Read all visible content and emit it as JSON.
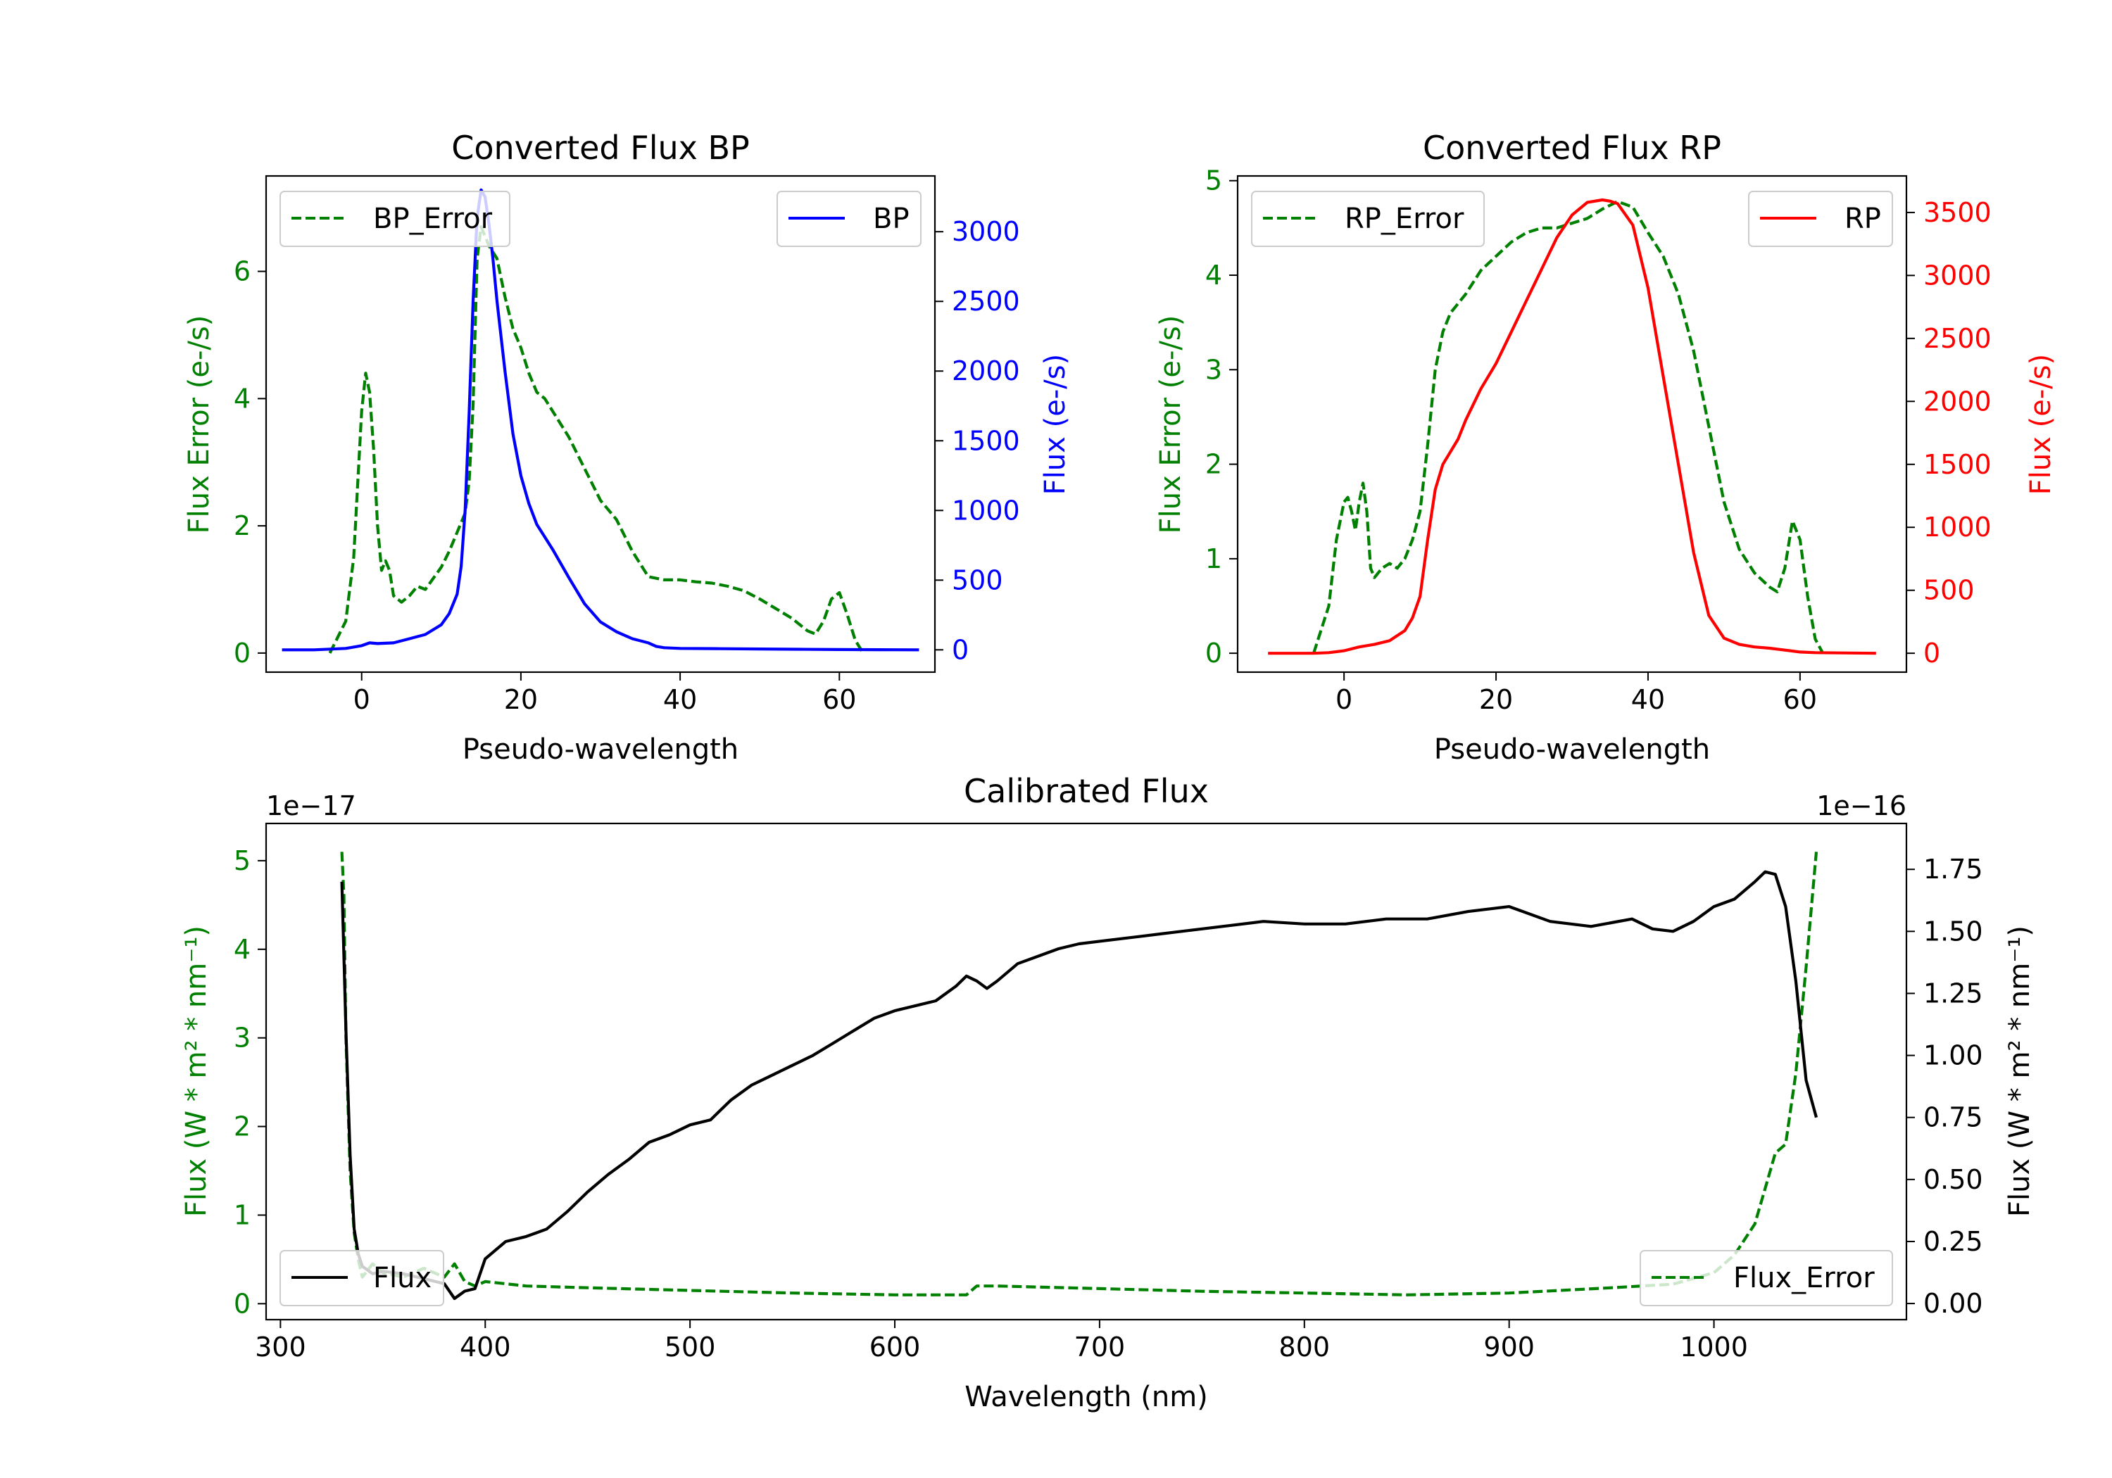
{
  "chart_data": [
    {
      "id": "bp",
      "type": "line",
      "title": "Converted Flux BP",
      "xlabel": "Pseudo-wavelength",
      "ylabel_left": "Flux Error (e-/s)",
      "ylabel_right": "Flux (e-/s)",
      "xlim": [
        -12,
        72
      ],
      "ylim_left": [
        -0.3,
        7.5
      ],
      "ylim_right": [
        -160,
        3400
      ],
      "xticks": [
        0,
        20,
        40,
        60
      ],
      "yticks_left": [
        0,
        2,
        4,
        6
      ],
      "yticks_right": [
        0,
        500,
        1000,
        1500,
        2000,
        2500,
        3000
      ],
      "legend_left": "top-left",
      "legend_right": "top-right",
      "series": [
        {
          "name": "BP_Error",
          "axis": "left",
          "color": "#008000",
          "style": "dashed",
          "x": [
            -4,
            -2,
            -1,
            0,
            0.5,
            1,
            1.5,
            2,
            2.5,
            3,
            3.5,
            4,
            5,
            6,
            7,
            8,
            10,
            11,
            12,
            13,
            13.5,
            14,
            14.5,
            15,
            16,
            17,
            18,
            19,
            20,
            21,
            22,
            23,
            24,
            26,
            28,
            30,
            32,
            34,
            36,
            38,
            40,
            42,
            44,
            46,
            48,
            50,
            52,
            54,
            56,
            57,
            58,
            59,
            60,
            61,
            62,
            63
          ],
          "values": [
            0,
            0.5,
            1.5,
            3.8,
            4.4,
            4.1,
            3.2,
            2.0,
            1.3,
            1.45,
            1.3,
            0.9,
            0.8,
            0.9,
            1.05,
            1.0,
            1.35,
            1.6,
            1.9,
            2.2,
            2.7,
            3.9,
            6.2,
            6.7,
            6.4,
            6.2,
            5.6,
            5.1,
            4.8,
            4.4,
            4.1,
            4.0,
            3.8,
            3.4,
            2.9,
            2.4,
            2.1,
            1.6,
            1.2,
            1.15,
            1.15,
            1.12,
            1.1,
            1.05,
            0.98,
            0.85,
            0.7,
            0.55,
            0.35,
            0.3,
            0.5,
            0.85,
            0.95,
            0.6,
            0.2,
            0
          ]
        },
        {
          "name": "BP",
          "axis": "right",
          "color": "#0000ff",
          "style": "solid",
          "x": [
            -10,
            -6,
            -4,
            -2,
            0,
            1,
            2,
            4,
            6,
            8,
            10,
            11,
            12,
            12.5,
            13,
            13.5,
            14,
            14.5,
            15,
            15.5,
            16,
            16.5,
            17,
            18,
            19,
            20,
            21,
            22,
            24,
            26,
            28,
            30,
            32,
            34,
            36,
            37,
            38,
            40,
            45,
            50,
            55,
            60,
            65,
            70
          ],
          "values": [
            0,
            0,
            5,
            10,
            30,
            50,
            45,
            50,
            80,
            110,
            180,
            260,
            400,
            600,
            1000,
            1700,
            2500,
            3100,
            3300,
            3250,
            3050,
            2800,
            2500,
            2000,
            1550,
            1250,
            1050,
            900,
            720,
            520,
            330,
            200,
            130,
            80,
            50,
            25,
            15,
            10,
            8,
            6,
            4,
            2,
            1,
            0
          ]
        }
      ]
    },
    {
      "id": "rp",
      "type": "line",
      "title": "Converted Flux RP",
      "xlabel": "Pseudo-wavelength",
      "ylabel_left": "Flux Error (e-/s)",
      "ylabel_right": "Flux (e-/s)",
      "xlim": [
        -14,
        74
      ],
      "ylim_left": [
        -0.2,
        5.05
      ],
      "ylim_right": [
        -150,
        3790
      ],
      "xticks": [
        0,
        20,
        40,
        60
      ],
      "yticks_left": [
        0,
        1,
        2,
        3,
        4,
        5
      ],
      "yticks_right": [
        0,
        500,
        1000,
        1500,
        2000,
        2500,
        3000,
        3500
      ],
      "legend_left": "top-left",
      "legend_right": "top-right",
      "series": [
        {
          "name": "RP_Error",
          "axis": "left",
          "color": "#008000",
          "style": "dashed",
          "x": [
            -4,
            -2,
            -1,
            0,
            0.5,
            1,
            1.5,
            2,
            2.5,
            3,
            3.5,
            4,
            5,
            6,
            7,
            8,
            9,
            10,
            11,
            12,
            13,
            14,
            16,
            18,
            20,
            22,
            24,
            26,
            28,
            30,
            32,
            34,
            36,
            38,
            40,
            42,
            44,
            46,
            48,
            50,
            52,
            54,
            56,
            57,
            58,
            59,
            60,
            61,
            62,
            63
          ],
          "values": [
            0,
            0.5,
            1.2,
            1.6,
            1.65,
            1.5,
            1.3,
            1.6,
            1.8,
            1.5,
            0.9,
            0.8,
            0.9,
            0.95,
            0.9,
            1.0,
            1.2,
            1.5,
            2.2,
            3.0,
            3.4,
            3.6,
            3.8,
            4.05,
            4.2,
            4.35,
            4.45,
            4.5,
            4.5,
            4.55,
            4.6,
            4.7,
            4.78,
            4.72,
            4.45,
            4.2,
            3.8,
            3.2,
            2.4,
            1.6,
            1.1,
            0.85,
            0.7,
            0.65,
            0.9,
            1.4,
            1.2,
            0.6,
            0.15,
            0
          ]
        },
        {
          "name": "RP",
          "axis": "right",
          "color": "#ff0000",
          "style": "solid",
          "x": [
            -10,
            -4,
            -2,
            0,
            2,
            4,
            6,
            8,
            9,
            10,
            11,
            12,
            13,
            14,
            15,
            16,
            18,
            20,
            22,
            24,
            26,
            28,
            30,
            32,
            34,
            35,
            36,
            38,
            40,
            42,
            44,
            46,
            48,
            50,
            52,
            54,
            56,
            58,
            60,
            62,
            70
          ],
          "values": [
            0,
            0,
            5,
            20,
            50,
            70,
            100,
            180,
            280,
            450,
            900,
            1300,
            1500,
            1600,
            1700,
            1850,
            2100,
            2300,
            2550,
            2800,
            3050,
            3300,
            3480,
            3580,
            3600,
            3590,
            3570,
            3400,
            2900,
            2200,
            1500,
            800,
            300,
            120,
            70,
            50,
            40,
            25,
            10,
            5,
            0
          ]
        }
      ]
    },
    {
      "id": "calibrated",
      "type": "line",
      "title": "Calibrated Flux",
      "xlabel": "Wavelength (nm)",
      "ylabel_left": "Flux (W * m² * nm⁻¹)",
      "ylabel_right": "Flux (W * m² * nm⁻¹)",
      "offset_left": "1e−17",
      "offset_right": "1e−16",
      "xlim": [
        293,
        1094
      ],
      "ylim_left": [
        -0.18,
        5.42
      ],
      "ylim_right": [
        -0.065,
        1.935
      ],
      "xticks": [
        300,
        400,
        500,
        600,
        700,
        800,
        900,
        1000
      ],
      "yticks_left": [
        0,
        1,
        2,
        3,
        4,
        5
      ],
      "yticks_right": [
        "0.00",
        "0.25",
        "0.50",
        "0.75",
        "1.00",
        "1.25",
        "1.50",
        "1.75"
      ],
      "legend_left": "bottom-left",
      "legend_right": "bottom-right",
      "series": [
        {
          "name": "Flux_Error",
          "axis": "left",
          "color": "#008000",
          "style": "dashed",
          "x": [
            330,
            331,
            332,
            334,
            336,
            338,
            340,
            345,
            350,
            360,
            370,
            380,
            385,
            390,
            395,
            400,
            420,
            450,
            500,
            550,
            600,
            635,
            640,
            650,
            700,
            750,
            800,
            850,
            900,
            950,
            980,
            1000,
            1010,
            1020,
            1025,
            1030,
            1035,
            1040,
            1045,
            1050
          ],
          "values": [
            5.1,
            4.6,
            3.0,
            1.5,
            0.8,
            0.5,
            0.3,
            0.45,
            0.35,
            0.3,
            0.4,
            0.3,
            0.45,
            0.25,
            0.2,
            0.25,
            0.2,
            0.18,
            0.15,
            0.12,
            0.1,
            0.1,
            0.2,
            0.2,
            0.17,
            0.14,
            0.12,
            0.1,
            0.12,
            0.18,
            0.22,
            0.35,
            0.55,
            0.9,
            1.3,
            1.7,
            1.8,
            2.6,
            3.8,
            5.1
          ]
        },
        {
          "name": "Flux",
          "axis": "right",
          "color": "#000000",
          "style": "solid",
          "x": [
            330,
            332,
            334,
            336,
            338,
            340,
            345,
            350,
            360,
            370,
            380,
            385,
            390,
            395,
            400,
            410,
            420,
            430,
            440,
            450,
            460,
            470,
            480,
            490,
            500,
            510,
            520,
            530,
            540,
            550,
            560,
            570,
            580,
            590,
            600,
            610,
            620,
            630,
            635,
            640,
            645,
            650,
            660,
            670,
            680,
            690,
            700,
            720,
            740,
            760,
            780,
            800,
            820,
            840,
            860,
            880,
            900,
            920,
            940,
            960,
            970,
            980,
            990,
            1000,
            1010,
            1020,
            1025,
            1030,
            1035,
            1040,
            1045,
            1050
          ],
          "values": [
            1.7,
            1.1,
            0.6,
            0.3,
            0.2,
            0.15,
            0.12,
            0.13,
            0.12,
            0.1,
            0.08,
            0.02,
            0.05,
            0.06,
            0.18,
            0.25,
            0.27,
            0.3,
            0.37,
            0.45,
            0.52,
            0.58,
            0.65,
            0.68,
            0.72,
            0.74,
            0.82,
            0.88,
            0.92,
            0.96,
            1.0,
            1.05,
            1.1,
            1.15,
            1.18,
            1.2,
            1.22,
            1.28,
            1.32,
            1.3,
            1.27,
            1.3,
            1.37,
            1.4,
            1.43,
            1.45,
            1.46,
            1.48,
            1.5,
            1.52,
            1.54,
            1.53,
            1.53,
            1.55,
            1.55,
            1.58,
            1.6,
            1.54,
            1.52,
            1.55,
            1.51,
            1.5,
            1.54,
            1.6,
            1.63,
            1.7,
            1.74,
            1.73,
            1.6,
            1.3,
            0.9,
            0.75
          ]
        }
      ]
    }
  ]
}
